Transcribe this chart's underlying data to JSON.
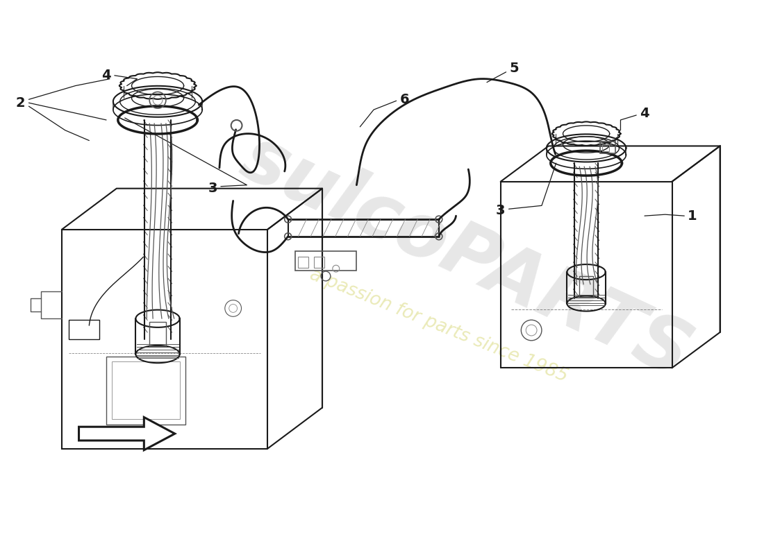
{
  "bg_color": "#ffffff",
  "line_color": "#1a1a1a",
  "light_line": "#555555",
  "lighter_line": "#888888",
  "watermark_text1": "sulcoPARTS",
  "watermark_text2": "a passion for parts since 1985",
  "wm_color1": "#d8d8d8",
  "wm_color2": "#e8e8b0",
  "figsize": [
    11.0,
    8.0
  ],
  "dpi": 100
}
